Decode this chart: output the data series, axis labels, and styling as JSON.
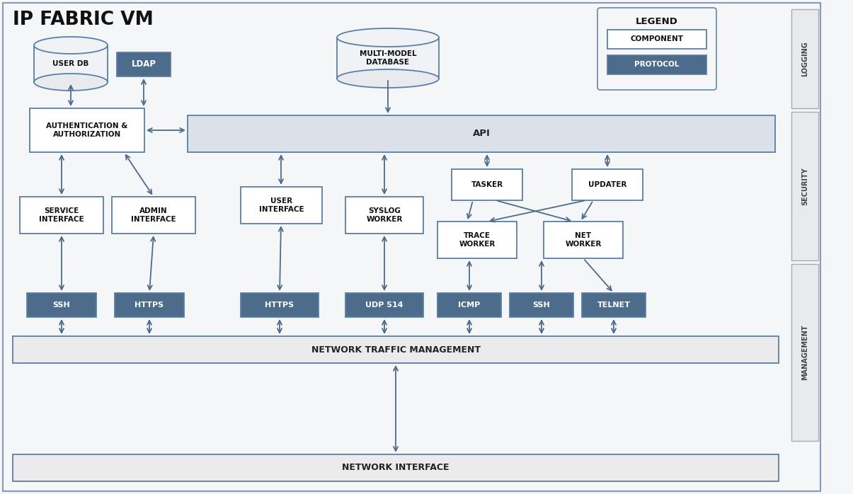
{
  "title": "IP FABRIC VM",
  "bg_color": "#f5f6f8",
  "inner_bg": "#ffffff",
  "main_border_color": "#6080a0",
  "component_fill": "#ffffff",
  "component_border": "#5a7fa8",
  "component_text": "#111111",
  "protocol_fill": "#4d6b8a",
  "protocol_text": "#ffffff",
  "api_fill": "#dce0e8",
  "api_border": "#5a7fa8",
  "arrow_color": "#4d6b8a",
  "sidebar_fill": "#e8eaed",
  "sidebar_border": "#aaaaaa",
  "legend_title": "LEGEND",
  "network_traffic_label": "NETWORK TRAFFIC MANAGEMENT",
  "network_interface_label": "NETWORK INTERFACE"
}
